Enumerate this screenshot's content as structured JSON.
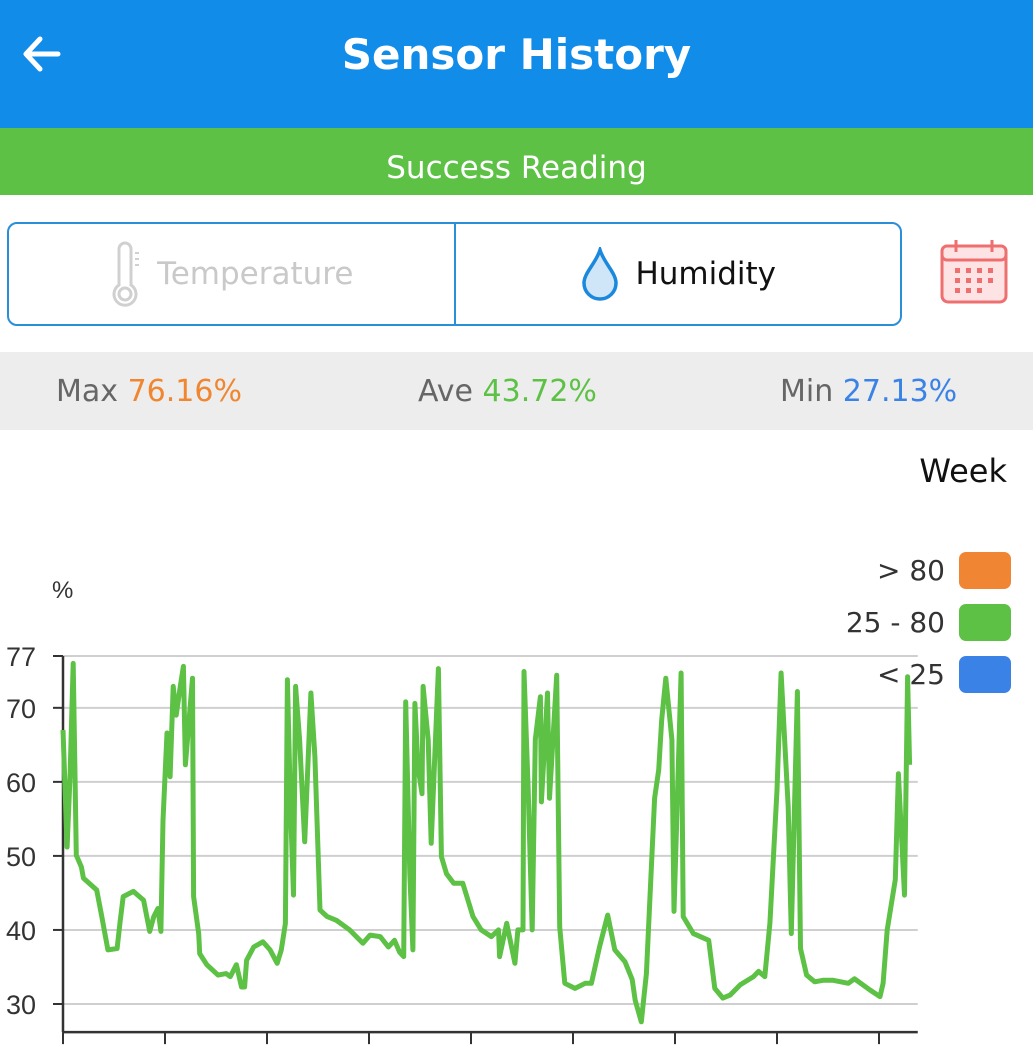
{
  "header": {
    "title": "Sensor History",
    "back_icon": "arrow-left-icon"
  },
  "status_bar": {
    "text": "Success Reading",
    "color": "#5dc145"
  },
  "tabs": [
    {
      "label": "Temperature",
      "icon": "thermometer-icon",
      "active": false
    },
    {
      "label": "Humidity",
      "icon": "water-drop-icon",
      "active": true
    }
  ],
  "calendar_icon": "calendar-icon",
  "stats": {
    "max": {
      "label": "Max",
      "value": "76.16%",
      "color": "#f0862f"
    },
    "ave": {
      "label": "Ave",
      "value": "43.72%",
      "color": "#5dc145"
    },
    "min": {
      "label": "Min",
      "value": "27.13%",
      "color": "#3b82e6"
    }
  },
  "period": "Week",
  "legend": [
    {
      "label": "> 80",
      "color": "#f08533"
    },
    {
      "label": "25 - 80",
      "color": "#5dc145"
    },
    {
      "label": "< 25",
      "color": "#3b82e6"
    }
  ],
  "chart_data": {
    "type": "line",
    "ylabel": "%",
    "ylim": [
      26.2,
      77
    ],
    "yticks": [
      "30",
      "40",
      "50",
      "60",
      "70",
      "77"
    ],
    "xlim": [
      0,
      8.38
    ],
    "xticks_count": 9,
    "grid": true,
    "line_color": "#5dc145",
    "x": [
      0,
      0.04,
      0.07,
      0.1,
      0.13,
      0.18,
      0.2,
      0.33,
      0.38,
      0.44,
      0.53,
      0.56,
      0.59,
      0.69,
      0.79,
      0.85,
      0.89,
      0.93,
      0.96,
      0.98,
      1.02,
      1.05,
      1.08,
      1.11,
      1.15,
      1.18,
      1.2,
      1.27,
      1.28,
      1.33,
      1.34,
      1.41,
      1.52,
      1.6,
      1.64,
      1.7,
      1.75,
      1.78,
      1.8,
      1.87,
      1.96,
      2.03,
      2.1,
      2.14,
      2.18,
      2.2,
      2.23,
      2.26,
      2.28,
      2.32,
      2.37,
      2.43,
      2.47,
      2.52,
      2.59,
      2.68,
      2.81,
      2.94,
      3.01,
      3.11,
      3.19,
      3.25,
      3.3,
      3.34,
      3.36,
      3.4,
      3.43,
      3.45,
      3.48,
      3.52,
      3.53,
      3.58,
      3.61,
      3.68,
      3.71,
      3.76,
      3.83,
      3.92,
      4.02,
      4.1,
      4.2,
      4.27,
      4.28,
      4.35,
      4.43,
      4.46,
      4.51,
      4.52,
      4.56,
      4.6,
      4.63,
      4.68,
      4.69,
      4.75,
      4.77,
      4.84,
      4.87,
      4.92,
      5.02,
      5.12,
      5.18,
      5.26,
      5.34,
      5.41,
      5.51,
      5.58,
      5.61,
      5.67,
      5.72,
      5.8,
      5.84,
      5.87,
      5.91,
      5.97,
      5.99,
      6.06,
      6.08,
      6.18,
      6.33,
      6.39,
      6.47,
      6.54,
      6.64,
      6.77,
      6.82,
      6.88,
      6.93,
      7.0,
      7.04,
      7.11,
      7.14,
      7.2,
      7.23,
      7.29,
      7.37,
      7.45,
      7.55,
      7.7,
      7.76,
      7.91,
      8.01,
      8.04,
      8.08,
      8.16,
      8.19,
      8.25,
      8.28,
      8.3
    ],
    "y": [
      67,
      51.2,
      61,
      76,
      50.1,
      48.5,
      47,
      45.4,
      41.8,
      37.3,
      37.5,
      41.1,
      44.5,
      45.2,
      44,
      39.8,
      41.8,
      42.9,
      39.8,
      54.8,
      66.6,
      60.7,
      72.9,
      69,
      72.9,
      75.6,
      62.3,
      74,
      44.5,
      39.5,
      36.8,
      35.3,
      33.9,
      34.1,
      33.7,
      35.3,
      32.3,
      32.3,
      35.9,
      37.7,
      38.4,
      37.3,
      35.5,
      37.3,
      40.9,
      73.8,
      56.6,
      44.7,
      72.9,
      65.7,
      51.9,
      72,
      63.4,
      42.7,
      41.8,
      41.3,
      40,
      38.2,
      39.3,
      39.1,
      37.7,
      38.6,
      37,
      36.4,
      70.8,
      47.6,
      37.3,
      70.6,
      62,
      58.4,
      72.9,
      65.7,
      51.7,
      75.3,
      49.9,
      47.6,
      46.3,
      46.3,
      41.8,
      40,
      39.1,
      40,
      36.4,
      40.9,
      35.5,
      40,
      40,
      74.9,
      59.3,
      40,
      65.7,
      71.5,
      57.3,
      72,
      57.8,
      74.4,
      40.4,
      32.8,
      32.1,
      32.8,
      32.8,
      37.7,
      42,
      37.3,
      35.7,
      33.3,
      30.5,
      27.6,
      34.1,
      57.8,
      61.6,
      68.4,
      74,
      65.7,
      42.5,
      74.7,
      41.8,
      39.5,
      38.6,
      32.1,
      30.8,
      31.2,
      32.6,
      33.7,
      34.4,
      33.7,
      40.9,
      58.9,
      74.7,
      56.6,
      39.5,
      72.2,
      37.5,
      33.9,
      33,
      33.2,
      33.2,
      32.8,
      33.4,
      31.9,
      31,
      32.8,
      40,
      46.8,
      61.1,
      44.7,
      74.2,
      62.3
    ]
  }
}
